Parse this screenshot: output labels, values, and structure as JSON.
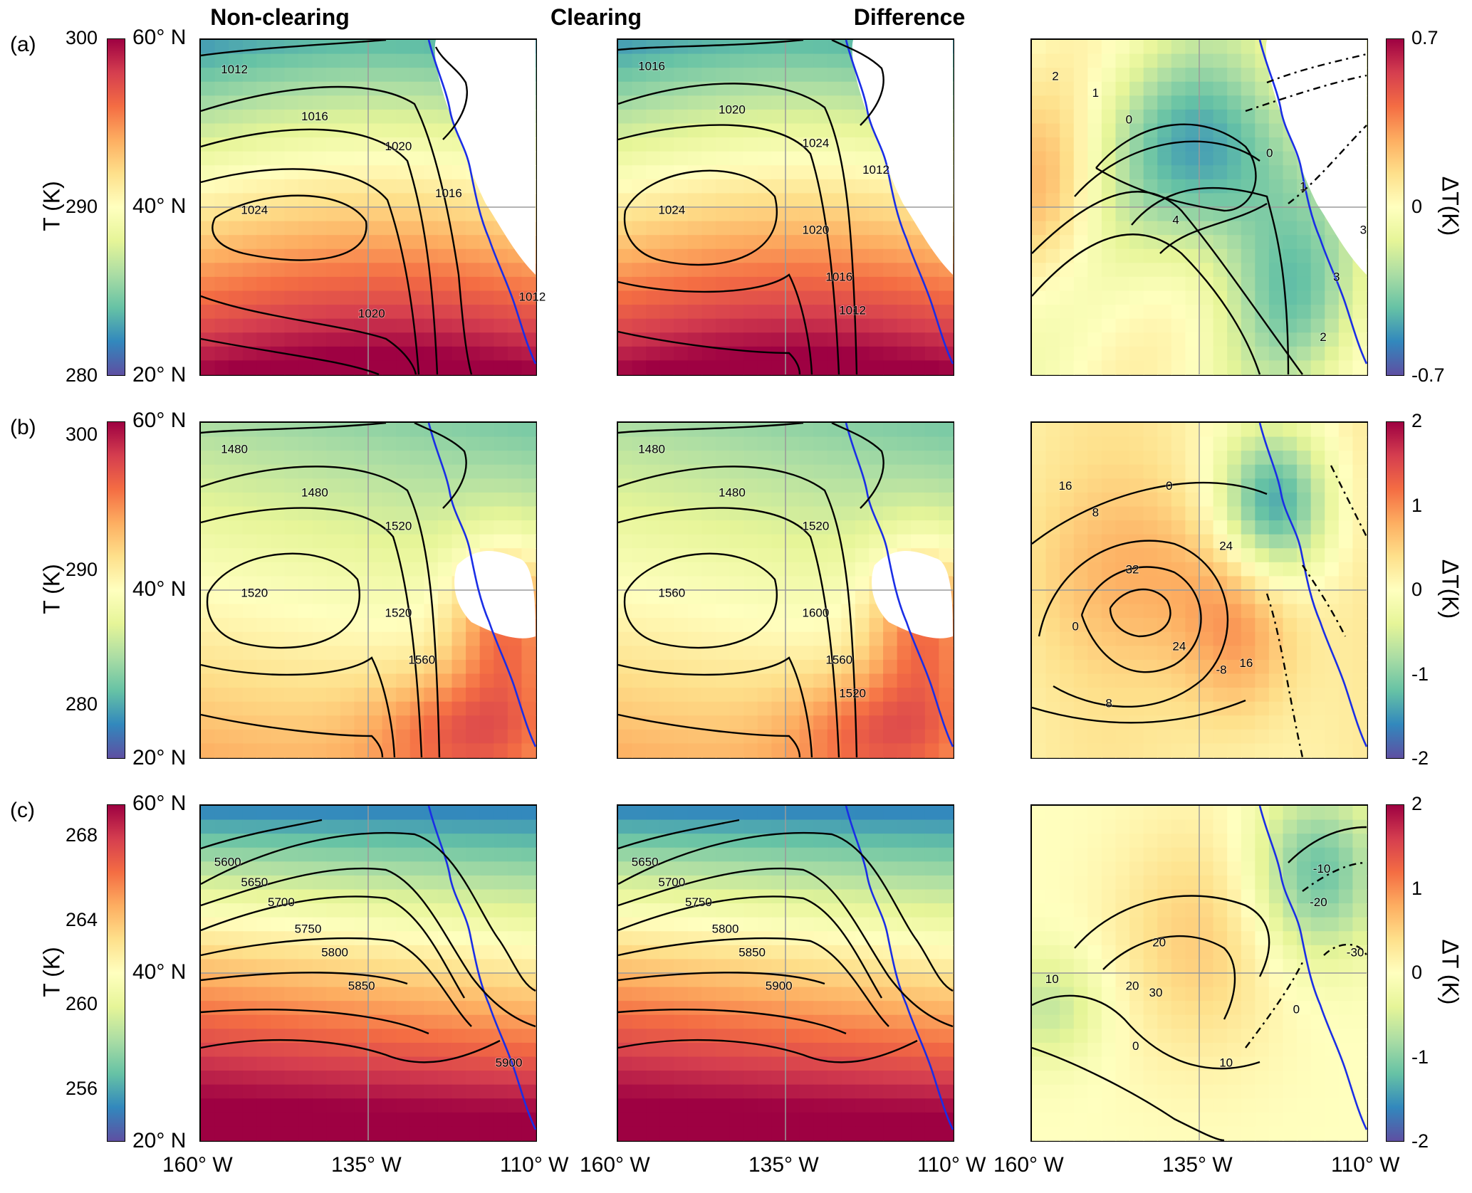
{
  "chart_data": {
    "type": "heatmap",
    "column_titles": [
      "Non-clearing",
      "Clearing",
      "Difference"
    ],
    "x_tick_labels": [
      "160° W",
      "135° W",
      "110° W"
    ],
    "y_tick_labels": [
      "60° N",
      "40° N",
      "20° N"
    ],
    "x_range": [
      -160,
      -110
    ],
    "y_range": [
      20,
      60
    ],
    "grid": true,
    "rows": [
      {
        "label": "(a)",
        "temp_colorbar": {
          "title": "T (K)",
          "ticks": [
            "300",
            "290",
            "280"
          ],
          "range": [
            280,
            300
          ]
        },
        "diff_colorbar": {
          "title": "ΔT(K)",
          "ticks": [
            "0.7",
            "0",
            "-0.7"
          ],
          "range": [
            -0.7,
            0.7
          ]
        },
        "contour_labels": {
          "non_clearing": [
            "1012",
            "1016",
            "1020",
            "1024",
            "1016",
            "1020",
            "1012"
          ],
          "clearing": [
            "1016",
            "1020",
            "1024",
            "1024",
            "1020",
            "1016",
            "1012",
            "1012"
          ],
          "difference": [
            "2",
            "1",
            "0",
            "4",
            "3",
            "3",
            "2",
            "1",
            "0"
          ]
        }
      },
      {
        "label": "(b)",
        "temp_colorbar": {
          "title": "T (K)",
          "ticks": [
            "300",
            "290",
            "280"
          ],
          "range": [
            276,
            301
          ]
        },
        "diff_colorbar": {
          "title": "ΔT(K)",
          "ticks": [
            "2",
            "1",
            "0",
            "-1",
            "-2"
          ],
          "range": [
            -2,
            2
          ]
        },
        "contour_labels": {
          "non_clearing": [
            "1480",
            "1480",
            "1520",
            "1520",
            "1520",
            "1560"
          ],
          "clearing": [
            "1480",
            "1480",
            "1520",
            "1560",
            "1600",
            "1560",
            "1520"
          ],
          "difference": [
            "16",
            "8",
            "0",
            "-8",
            "32",
            "24",
            "24",
            "16",
            "8",
            "0"
          ]
        }
      },
      {
        "label": "(c)",
        "temp_colorbar": {
          "title": "T (K)",
          "ticks": [
            "268",
            "264",
            "260",
            "256"
          ],
          "range": [
            253.5,
            269.5
          ]
        },
        "diff_colorbar": {
          "title": "ΔT (K)",
          "ticks": [
            "2",
            "1",
            "0",
            "-1",
            "-2"
          ],
          "range": [
            -2,
            2
          ]
        },
        "contour_labels": {
          "non_clearing": [
            "5600",
            "5650",
            "5700",
            "5750",
            "5800",
            "5850",
            "5900"
          ],
          "clearing": [
            "5650",
            "5700",
            "5750",
            "5800",
            "5850",
            "5900"
          ],
          "difference": [
            "-10",
            "-20",
            "-30",
            "10",
            "20",
            "30",
            "20",
            "0",
            "10",
            "0"
          ]
        }
      }
    ]
  },
  "colors": {
    "contour": "#000000",
    "coastline": "#1a2ee6",
    "colormap": "spectral: #5e4fa2 → #3288bd → #66c2a5 → #abdda4 → #e6f598 → #ffffbf → #fee08b → #fdae61 → #f46d43 → #d53e4f → #9e0142"
  }
}
